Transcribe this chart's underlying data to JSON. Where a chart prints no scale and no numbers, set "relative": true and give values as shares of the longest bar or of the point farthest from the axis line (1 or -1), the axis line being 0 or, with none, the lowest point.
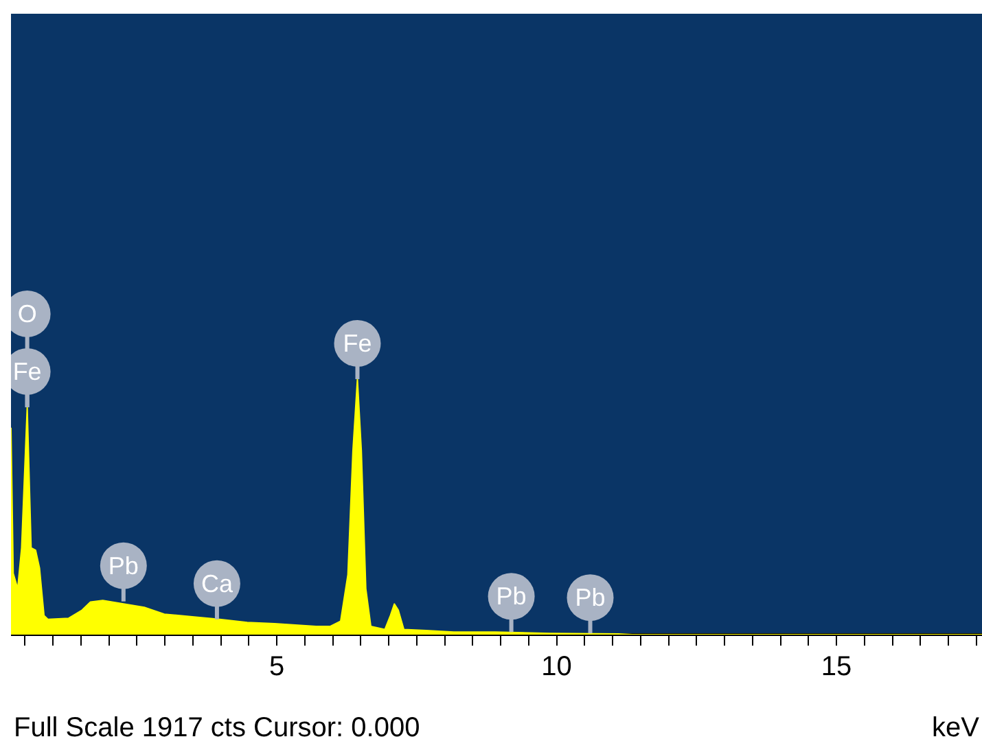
{
  "chart_data": {
    "type": "area",
    "relative": true,
    "xlabel": "keV",
    "legend": false,
    "grid": false,
    "marker": "none",
    "x": [
      0.25,
      0.29,
      0.37,
      0.44,
      0.54,
      0.61,
      0.69,
      0.76,
      0.84,
      0.91,
      1.28,
      1.52,
      1.67,
      1.89,
      2.26,
      2.63,
      2.99,
      3.49,
      3.98,
      4.47,
      4.96,
      5.7,
      5.95,
      6.14,
      6.27,
      6.36,
      6.44,
      6.51,
      6.59,
      6.68,
      6.93,
      7.03,
      7.1,
      7.17,
      7.27,
      7.67,
      8.16,
      8.9,
      9.88,
      11.1,
      11.35,
      17.6
    ],
    "series": [
      {
        "color": "#ffff00",
        "values": [
          0.81,
          0.24,
          0.18,
          0.34,
          0.89,
          0.34,
          0.33,
          0.26,
          0.075,
          0.06,
          0.064,
          0.096,
          0.128,
          0.134,
          0.12,
          0.107,
          0.08,
          0.07,
          0.06,
          0.048,
          0.043,
          0.032,
          0.032,
          0.053,
          0.235,
          0.72,
          1.0,
          0.72,
          0.18,
          0.032,
          0.02,
          0.075,
          0.12,
          0.096,
          0.02,
          0.016,
          0.01,
          0.01,
          0.005,
          0.003,
          0,
          0
        ]
      }
    ],
    "xlim": [
      0.25,
      17.6
    ],
    "xticks": [
      {
        "value": 0.5,
        "label": null
      },
      {
        "value": 1,
        "label": null
      },
      {
        "value": 1.5,
        "label": null
      },
      {
        "value": 2,
        "label": null
      },
      {
        "value": 2.5,
        "label": null
      },
      {
        "value": 3,
        "label": null
      },
      {
        "value": 3.5,
        "label": null
      },
      {
        "value": 4,
        "label": null
      },
      {
        "value": 4.5,
        "label": null
      },
      5,
      {
        "value": 5.5,
        "label": null
      },
      {
        "value": 6,
        "label": null
      },
      {
        "value": 6.5,
        "label": null
      },
      {
        "value": 7,
        "label": null
      },
      {
        "value": 7.5,
        "label": null
      },
      {
        "value": 8,
        "label": null
      },
      {
        "value": 8.5,
        "label": null
      },
      {
        "value": 9,
        "label": null
      },
      {
        "value": 9.5,
        "label": null
      },
      10,
      {
        "value": 10.5,
        "label": null
      },
      {
        "value": 11,
        "label": null
      },
      {
        "value": 11.5,
        "label": null
      },
      {
        "value": 12,
        "label": null
      },
      {
        "value": 12.5,
        "label": null
      },
      {
        "value": 13,
        "label": null
      },
      {
        "value": 13.5,
        "label": null
      },
      {
        "value": 14,
        "label": null
      },
      {
        "value": 14.5,
        "label": null
      },
      15,
      {
        "value": 15.5,
        "label": null
      },
      {
        "value": 16,
        "label": null
      },
      {
        "value": 16.5,
        "label": null
      },
      {
        "value": 17,
        "label": null
      },
      {
        "value": 17.5,
        "label": null
      }
    ],
    "annotations": [
      {
        "text": "O",
        "x": 0.54,
        "y": 0.89
      },
      {
        "text": "Fe",
        "x": 0.54,
        "y": 0.89
      },
      {
        "text": "Pb",
        "x": 2.26,
        "y": 0.13
      },
      {
        "text": "Ca",
        "x": 3.93,
        "y": 0.06
      },
      {
        "text": "Fe",
        "x": 6.44,
        "y": 1.0
      },
      {
        "text": "Pb",
        "x": 9.19,
        "y": 0.01
      },
      {
        "text": "Pb",
        "x": 10.6,
        "y": 0.005
      },
      "Full Scale 1917 cts Cursor: 0.000"
    ]
  }
}
